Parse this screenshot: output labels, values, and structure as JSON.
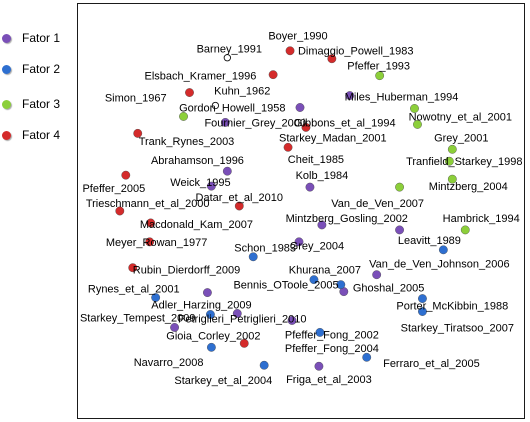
{
  "legend": {
    "items": [
      {
        "label": "Fator 1",
        "color": "#7a4fb8"
      },
      {
        "label": "Fator 2",
        "color": "#2e6fd0"
      },
      {
        "label": "Fator 3",
        "color": "#8ccf3a"
      },
      {
        "label": "Fator 4",
        "color": "#d42b2b"
      }
    ]
  },
  "chart_data": {
    "type": "scatter",
    "title": "",
    "xlabel": "",
    "ylabel": "",
    "grid": false,
    "axes_visible": false,
    "legend_position": "left",
    "xlim": [
      0,
      448
    ],
    "ylim": [
      0,
      416
    ],
    "series": [
      {
        "name": "Fator 1",
        "color": "#7a4fb8",
        "points": [
          {
            "label": "Kuhn_1962",
            "x": 148,
            "y": 119
          },
          {
            "label": "Gordon_Howell_1958",
            "x": 223,
            "y": 104
          },
          {
            "label": "Miles_Huberman_1994",
            "x": 273,
            "y": 92
          },
          {
            "label": "Abrahamson_1996",
            "x": 150,
            "y": 168
          },
          {
            "label": "Weick_1995",
            "x": 134,
            "y": 183
          },
          {
            "label": "Kolb_1984",
            "x": 233,
            "y": 184
          },
          {
            "label": "Mintzberg_Gosling_2002",
            "x": 245,
            "y": 222
          },
          {
            "label": "Grey_2004",
            "x": 222,
            "y": 239
          },
          {
            "label": "Leavitt_1989",
            "x": 323,
            "y": 227
          },
          {
            "label": "Van_de_Ven_Johnson_2006",
            "x": 300,
            "y": 272
          },
          {
            "label": "Rynes_et_al_2001",
            "x": 130,
            "y": 290
          },
          {
            "label": "Adler_Harzing_2009",
            "x": 160,
            "y": 311
          },
          {
            "label": "Ghoshal_2005",
            "x": 267,
            "y": 289
          },
          {
            "label": "Gioia_Corley_2002",
            "x": 97,
            "y": 325
          },
          {
            "label": "Pfeffer_Fong_2002",
            "x": 215,
            "y": 318
          },
          {
            "label": "Friga_et_al_2003",
            "x": 242,
            "y": 364
          }
        ]
      },
      {
        "name": "Fator 2",
        "color": "#2e6fd0",
        "points": [
          {
            "label": "Schon_1983",
            "x": 176,
            "y": 254
          },
          {
            "label": "Khurana_2007",
            "x": 237,
            "y": 277
          },
          {
            "label": "Bennis_OToole_2005",
            "x": 264,
            "y": 282
          },
          {
            "label": "Van_de_Ven_Johnson_2006",
            "x": 367,
            "y": 247
          },
          {
            "label": "Porter_McKibbin_1988",
            "x": 346,
            "y": 296
          },
          {
            "label": "Starkey_Tempest_2009",
            "x": 78,
            "y": 295
          },
          {
            "label": "Petriglieri_Petriglieri_2010",
            "x": 133,
            "y": 312
          },
          {
            "label": "Starkey_Tiratsoo_2007",
            "x": 346,
            "y": 309
          },
          {
            "label": "Pfeffer_Fong_2004",
            "x": 243,
            "y": 330
          },
          {
            "label": "Navarro_2008",
            "x": 134,
            "y": 345
          },
          {
            "label": "Ferraro_et_al_2005",
            "x": 290,
            "y": 355
          },
          {
            "label": "Starkey_et_al_2004",
            "x": 187,
            "y": 363
          }
        ]
      },
      {
        "name": "Fator 3",
        "color": "#8ccf3a",
        "points": [
          {
            "label": "Pfeffer_1993",
            "x": 303,
            "y": 72
          },
          {
            "label": "Nowotny_et_al_2001",
            "x": 338,
            "y": 105
          },
          {
            "label": "Gibbons_et_al_1994",
            "x": 341,
            "y": 121
          },
          {
            "label": "Fournier_Grey_2000",
            "x": 106,
            "y": 113
          },
          {
            "label": "Grey_2001",
            "x": 376,
            "y": 146
          },
          {
            "label": "Tranfield_Starkey_1998",
            "x": 373,
            "y": 158
          },
          {
            "label": "Mintzberg_2004",
            "x": 376,
            "y": 176
          },
          {
            "label": "Hambrick_1994",
            "x": 389,
            "y": 227
          },
          {
            "label": "Van_de_Ven_2007",
            "x": 323,
            "y": 184
          }
        ]
      },
      {
        "name": "Fator 4",
        "color": "#d42b2b",
        "points": [
          {
            "label": "Boyer_1990",
            "x": 213,
            "y": 47
          },
          {
            "label": "Dimaggio_Powell_1983",
            "x": 255,
            "y": 55
          },
          {
            "label": "Elsbach_Kramer_1996",
            "x": 196,
            "y": 71
          },
          {
            "label": "Simon_1967",
            "x": 112,
            "y": 89
          },
          {
            "label": "Trank_Rynes_2003",
            "x": 60,
            "y": 130
          },
          {
            "label": "Starkey_Madan_2001",
            "x": 229,
            "y": 124
          },
          {
            "label": "Cheit_1985",
            "x": 211,
            "y": 144
          },
          {
            "label": "Pfeffer_2005",
            "x": 48,
            "y": 172
          },
          {
            "label": "Datar_et_al_2010",
            "x": 162,
            "y": 203
          },
          {
            "label": "Trieschmann_et_al_2000",
            "x": 42,
            "y": 208
          },
          {
            "label": "Macdonald_Kam_2007",
            "x": 73,
            "y": 220
          },
          {
            "label": "Meyer_Rowan_1977",
            "x": 72,
            "y": 239
          },
          {
            "label": "Rubin_Dierdorff_2009",
            "x": 55,
            "y": 265
          },
          {
            "label": "Pfeffer_Fong_2004",
            "x": 167,
            "y": 341
          }
        ]
      }
    ],
    "open_markers": [
      {
        "label": "Barney_1991",
        "x": 150,
        "y": 54
      },
      {
        "label": "Gordon_Howell_1958",
        "x": 138,
        "y": 102
      }
    ],
    "labels": [
      {
        "text": "Boyer_1990",
        "x": 221,
        "y": 33
      },
      {
        "text": "Barney_1991",
        "x": 152,
        "y": 46
      },
      {
        "text": "Dimaggio_Powell_1983",
        "x": 279,
        "y": 48
      },
      {
        "text": "Pfeffer_1993",
        "x": 302,
        "y": 63
      },
      {
        "text": "Elsbach_Kramer_1996",
        "x": 123,
        "y": 73
      },
      {
        "text": "Kuhn_1962",
        "x": 165,
        "y": 88
      },
      {
        "text": "Simon_1967",
        "x": 58,
        "y": 95
      },
      {
        "text": "Miles_Huberman_1994",
        "x": 325,
        "y": 94
      },
      {
        "text": "Gordon_Howell_1958",
        "x": 155,
        "y": 105
      },
      {
        "text": "Nowotny_et_al_2001",
        "x": 384,
        "y": 114
      },
      {
        "text": "Fournier_Grey_2000",
        "x": 178,
        "y": 120
      },
      {
        "text": "Gibbons_et_al_1994",
        "x": 268,
        "y": 120
      },
      {
        "text": "Trank_Rynes_2003",
        "x": 109,
        "y": 139
      },
      {
        "text": "Starkey_Madan_2001",
        "x": 256,
        "y": 135
      },
      {
        "text": "Grey_2001",
        "x": 385,
        "y": 135
      },
      {
        "text": "Abrahamson_1996",
        "x": 120,
        "y": 158
      },
      {
        "text": "Cheit_1985",
        "x": 239,
        "y": 157
      },
      {
        "text": "Tranfield_Starkey_1998",
        "x": 388,
        "y": 159
      },
      {
        "text": "Kolb_1984",
        "x": 245,
        "y": 173
      },
      {
        "text": "Weick_1995",
        "x": 123,
        "y": 180
      },
      {
        "text": "Pfeffer_2005",
        "x": 36,
        "y": 186
      },
      {
        "text": "Datar_et_al_2010",
        "x": 162,
        "y": 195
      },
      {
        "text": "Mintzberg_2004",
        "x": 392,
        "y": 184
      },
      {
        "text": "Trieschmann_et_al_2000",
        "x": 70,
        "y": 201
      },
      {
        "text": "Van_de_Ven_2007",
        "x": 301,
        "y": 201
      },
      {
        "text": "Mintzberg_Gosling_2002",
        "x": 270,
        "y": 216
      },
      {
        "text": "Macdonald_Kam_2007",
        "x": 119,
        "y": 222
      },
      {
        "text": "Hambrick_1994",
        "x": 405,
        "y": 216
      },
      {
        "text": "Meyer_Rowan_1977",
        "x": 79,
        "y": 240
      },
      {
        "text": "Leavitt_1989",
        "x": 353,
        "y": 238
      },
      {
        "text": "Schon_1983",
        "x": 188,
        "y": 246
      },
      {
        "text": "Grey_2004",
        "x": 240,
        "y": 244
      },
      {
        "text": "Van_de_Ven_Johnson_2006",
        "x": 363,
        "y": 262
      },
      {
        "text": "Rubin_Dierdorff_2009",
        "x": 109,
        "y": 268
      },
      {
        "text": "Khurana_2007",
        "x": 248,
        "y": 268
      },
      {
        "text": "Bennis_OToole_2005",
        "x": 209,
        "y": 283
      },
      {
        "text": "Rynes_et_al_2001",
        "x": 56,
        "y": 287
      },
      {
        "text": "Ghoshal_2005",
        "x": 312,
        "y": 286
      },
      {
        "text": "Adler_Harzing_2009",
        "x": 124,
        "y": 303
      },
      {
        "text": "Porter_McKibbin_1988",
        "x": 376,
        "y": 304
      },
      {
        "text": "Starkey_Tempest_2009",
        "x": 60,
        "y": 316
      },
      {
        "text": "Petriglieri_Petriglieri_2010",
        "x": 165,
        "y": 317
      },
      {
        "text": "Starkey_Tiratsoo_2007",
        "x": 381,
        "y": 326
      },
      {
        "text": "Gioia_Corley_2002",
        "x": 136,
        "y": 334
      },
      {
        "text": "Pfeffer_Fong_2002",
        "x": 255,
        "y": 333
      },
      {
        "text": "Pfeffer_Fong_2004",
        "x": 255,
        "y": 347
      },
      {
        "text": "Navarro_2008",
        "x": 91,
        "y": 361
      },
      {
        "text": "Ferraro_et_al_2005",
        "x": 355,
        "y": 362
      },
      {
        "text": "Friga_et_al_2003",
        "x": 252,
        "y": 378
      },
      {
        "text": "Starkey_et_al_2004",
        "x": 146,
        "y": 379
      }
    ]
  }
}
